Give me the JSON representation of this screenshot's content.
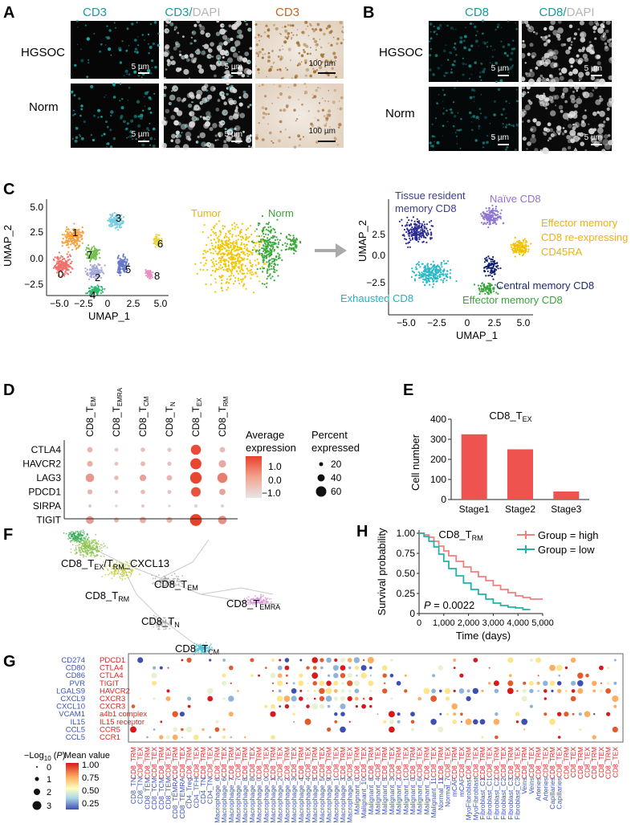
{
  "panels": {
    "A": {
      "letter": "A",
      "headers": [
        "CD3",
        "CD3/",
        "DAPI",
        "CD3"
      ],
      "rows": [
        "HGSOC",
        "Norm"
      ],
      "scales": [
        "5 µm",
        "5 µm",
        "100 µm",
        "5 µm",
        "5 µm",
        "100 µm"
      ]
    },
    "B": {
      "letter": "B",
      "headers": [
        "CD8",
        "CD8/",
        "DAPI"
      ],
      "rows": [
        "HGSOC",
        "Norm"
      ],
      "scales": [
        "5 µm",
        "5 µm",
        "5 µm",
        "5 µm"
      ]
    },
    "C": {
      "letter": "C",
      "clusters": [
        "0",
        "1",
        "2",
        "3",
        "4",
        "5",
        "6",
        "7",
        "8"
      ],
      "groups": [
        "Tumor",
        "Norm"
      ],
      "subtypes": [
        "Tissue resident",
        "memory CD8",
        "Naïve CD8",
        "Effector memory",
        "CD8 re-expressing",
        "CD45RA",
        "Central memory CD8",
        "Exhausted CD8",
        "Effector memory CD8"
      ],
      "xlabel": "UMAP_1",
      "ylabel": "UMAP_2",
      "xticks": [
        "−5.0",
        "−2.5",
        "0",
        "2.5",
        "5.0"
      ],
      "yticks": [
        "5.0",
        "2.5",
        "0.0",
        "−2.5"
      ]
    },
    "D": {
      "letter": "D",
      "columns": [
        {
          "base": "CD8_T",
          "sub": "EM"
        },
        {
          "base": "CD8_T",
          "sub": "EMRA"
        },
        {
          "base": "CD8_T",
          "sub": "CM"
        },
        {
          "base": "CD8_T",
          "sub": "N"
        },
        {
          "base": "CD8_T",
          "sub": "EX"
        },
        {
          "base": "CD8_T",
          "sub": "RM"
        }
      ],
      "genes": [
        "CTLA4",
        "HAVCR2",
        "LAG3",
        "PDCD1",
        "SIRPA",
        "TIGIT"
      ],
      "legend_expr_title": [
        "Average",
        "expression"
      ],
      "legend_expr_ticks": [
        "1.0",
        "0.0",
        "−1.0"
      ],
      "legend_pct_title": [
        "Percent",
        "expressed"
      ],
      "legend_pct_ticks": [
        "20",
        "40",
        "60"
      ]
    },
    "E": {
      "letter": "E",
      "title_base": "CD8_T",
      "title_sub": "EX",
      "ylabel": "Cell number",
      "yticks": [
        "0",
        "100",
        "200",
        "300",
        "400"
      ]
    },
    "F": {
      "letter": "F",
      "labels": [
        {
          "base": "CD8_T",
          "sub": "EX",
          "mid": "/T",
          "sub2": "RM",
          "tail": "_CXCL13"
        },
        {
          "base": "CD8_T",
          "sub": "EM"
        },
        {
          "base": "CD8_T",
          "sub": "RM"
        },
        {
          "base": "CD8_T",
          "sub": "EMRA"
        },
        {
          "base": "CD8_T",
          "sub": "N"
        },
        {
          "base": "CD8_T",
          "sub": "CM"
        }
      ]
    },
    "H": {
      "letter": "H",
      "title_base": "CD8_T",
      "title_sub": "RM",
      "legend": [
        "Group = high",
        "Group = low"
      ],
      "pvalue_label": "P",
      "pvalue": " = 0.0022",
      "ylabel": "Survival probability",
      "xlabel": "Time (days)",
      "yticks": [
        "1.00",
        "0.75",
        "0.50",
        "0.25",
        "0"
      ],
      "xticks": [
        "0",
        "1,000",
        "2,000",
        "3,000",
        "4,000",
        "5,000"
      ]
    },
    "G": {
      "letter": "G",
      "ligands": [
        "CD274",
        "CD80",
        "CD86",
        "PVR",
        "LGALS9",
        "CXCL9",
        "CXCL10",
        "VCAM1",
        "IL15",
        "CCL5",
        "CCL5"
      ],
      "receptors": [
        "PDCD1",
        "CTLA4",
        "CTLA4",
        "TIGIT",
        "HAVCR2",
        "CXCR3",
        "CXCR3",
        "a4b1 complex",
        "IL15 receptor",
        "CCR5",
        "CCR1"
      ],
      "pval_legend_title": "−Log",
      "pval_legend_ticks": [
        "0",
        "1",
        "2",
        "3"
      ],
      "mean_legend_title": "Mean value",
      "mean_legend_ticks": [
        "1.00",
        "0.75",
        "0.50",
        "0.25"
      ],
      "red_labels": [
        "CD8_TRM",
        "CD8_TEX",
        "CD8_TRM",
        "CD8_TEX",
        "CD8_TRM",
        "CD8_TEX",
        "CD8_TRM",
        "CD8_TEX",
        "CD8_TRM",
        "CD8_TEX",
        "CD8_TRM",
        "CD8_TEX",
        "CD8_TRM",
        "CD8_TEX",
        "CD8_TRM",
        "CD8_TEX",
        "CD8_TRM",
        "CD8_TEX",
        "CD8_TRM",
        "CD8_TEX",
        "CD8_TRM",
        "CD8_TEX",
        "CD8_TRM",
        "CD8_TEX",
        "CD8_TRM",
        "CD8_TEX",
        "CD8_TRM",
        "CD8_TEX",
        "CD8_TRM",
        "CD8_TEX",
        "CD8_TRM",
        "CD8_TEX",
        "CD8_TRM",
        "CD8_TEX",
        "CD8_TRM",
        "CD8_TEX",
        "CD8_TRM",
        "CD8_TEX",
        "CD8_TRM",
        "CD8_TEX",
        "CD8_TRM",
        "CD8_TEX",
        "CD8_TRM",
        "CD8_TEX",
        "CD8_TRM",
        "CD8_TEX",
        "CD8_TRM",
        "CD8_TEX",
        "CD8_TRM",
        "CD8_TEX",
        "CD8_TRM",
        "CD8_TEX",
        "CD8_TRM",
        "CD8_TEX",
        "CD8_TRM",
        "CD8_TEX",
        "CD8_TRM",
        "CD8_TEX",
        "CD8_TRM",
        "CD8_TEX",
        "CD8_TRM",
        "CD8_TEX",
        "CD8_TRM",
        "CD8_TEX",
        "CD8_TRM",
        "CD8_TEX",
        "CD8_TRM",
        "CD8_TEX",
        "CD8_TRM",
        "CD8_TEX"
      ],
      "blue_labels": [
        "CD8_TN",
        "CD8_TN",
        "CD8_TEM",
        "CD8_TCM",
        "CD8_TCM",
        "CD8_TEM",
        "CD8_TEMRA",
        "CD8_TEMRA",
        "CD4_Treg",
        "CD4_TFH",
        "CD4_TN",
        "CD4_TN",
        "Macrophage_6",
        "Macrophage_6",
        "Macrophage_7",
        "Macrophage_7",
        "Macrophage_8",
        "Macrophage_8",
        "Macrophage_0",
        "Macrophage_0",
        "Macrophage_1",
        "Macrophage_2",
        "Macrophage_2",
        "Macrophage_3",
        "Macrophage_4",
        "Macrophage_4",
        "Macrophage_5",
        "Macrophage_5",
        "Macrophage_9",
        "Macrophage_1",
        "Macrophage_3",
        "Macrophage_9",
        "Malignant_0",
        "Malignant_10",
        "Malignant_8",
        "Malignant_4",
        "Malignant_5",
        "Malignant_3",
        "Malignant_2",
        "Malignant_1",
        "Malignant_0",
        "Malignant_6",
        "Malignant_7",
        "Malignant_11",
        "Normal_11",
        "Normal_7",
        "mCAF",
        "mCAF",
        "MyoFibroblast",
        "MyoFibroblast",
        "Fibroblast_C1",
        "Fibroblast_C1",
        "Fibroblast_C2",
        "Fibroblast_C2",
        "Fibroblast_C3",
        "Fibroblast_C3",
        "Veins",
        "Veins",
        "Arteries",
        "Arteries",
        "Capillaries",
        "Capillaries"
      ]
    }
  },
  "chart_data": [
    {
      "type": "bar",
      "title": "CD8_TEX",
      "categories": [
        "Stage1",
        "Stage2",
        "Stage3"
      ],
      "values": [
        325,
        250,
        40
      ],
      "xlabel": "",
      "ylabel": "Cell number",
      "ylim": [
        0,
        400
      ],
      "color": "#ef5350"
    },
    {
      "type": "line",
      "title": "CD8_TRM",
      "xlabel": "Time (days)",
      "ylabel": "Survival probability",
      "xlim": [
        0,
        5000
      ],
      "ylim": [
        0,
        1
      ],
      "series": [
        {
          "name": "Group = high",
          "color": "#f08080",
          "x": [
            0,
            200,
            400,
            600,
            800,
            1000,
            1200,
            1500,
            1800,
            2100,
            2400,
            2700,
            3000,
            3300,
            3600,
            3900,
            4200,
            4500,
            5000
          ],
          "y": [
            1.0,
            0.98,
            0.95,
            0.9,
            0.84,
            0.78,
            0.72,
            0.65,
            0.58,
            0.52,
            0.46,
            0.41,
            0.35,
            0.3,
            0.26,
            0.22,
            0.2,
            0.18,
            0.18
          ]
        },
        {
          "name": "Group = low",
          "color": "#20b2aa",
          "x": [
            0,
            200,
            400,
            600,
            800,
            1000,
            1200,
            1500,
            1800,
            2100,
            2400,
            2700,
            3000,
            3300,
            3600,
            3900,
            4200,
            4500
          ],
          "y": [
            1.0,
            0.96,
            0.9,
            0.83,
            0.74,
            0.65,
            0.56,
            0.47,
            0.38,
            0.3,
            0.24,
            0.18,
            0.13,
            0.1,
            0.08,
            0.07,
            0.05,
            0.05
          ]
        }
      ]
    },
    {
      "type": "scatter",
      "title": "",
      "columns": [
        "CD8_TEM",
        "CD8_TEMRA",
        "CD8_TCM",
        "CD8_TN",
        "CD8_TEX",
        "CD8_TRM"
      ],
      "rows": [
        "CTLA4",
        "HAVCR2",
        "LAG3",
        "PDCD1",
        "SIRPA",
        "TIGIT"
      ],
      "expression": [
        [
          -0.3,
          -0.6,
          -0.5,
          -0.6,
          1.4,
          -0.4
        ],
        [
          -0.2,
          -0.5,
          -0.4,
          -0.5,
          1.5,
          -0.1
        ],
        [
          0.2,
          -0.4,
          0.0,
          -0.3,
          1.5,
          0.6
        ],
        [
          -0.3,
          -0.5,
          -0.4,
          -0.5,
          1.3,
          0.0
        ],
        [
          -0.6,
          -0.7,
          -0.6,
          -0.7,
          -0.7,
          -0.7
        ],
        [
          0.1,
          -0.3,
          -0.2,
          -0.3,
          1.6,
          0.3
        ]
      ],
      "percent": [
        [
          10,
          4,
          6,
          5,
          45,
          10
        ],
        [
          12,
          4,
          7,
          5,
          55,
          22
        ],
        [
          30,
          6,
          16,
          10,
          62,
          45
        ],
        [
          8,
          3,
          6,
          4,
          40,
          14
        ],
        [
          2,
          1,
          2,
          1,
          2,
          2
        ],
        [
          25,
          8,
          15,
          12,
          65,
          30
        ]
      ]
    }
  ]
}
